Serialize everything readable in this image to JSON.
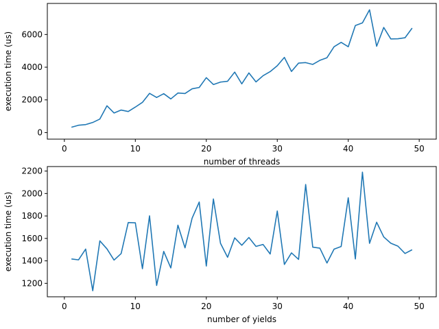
{
  "chart_data": [
    {
      "type": "line",
      "xlabel": "number of threads",
      "ylabel": "execution time (us)",
      "xlim": [
        -2.4,
        52.4
      ],
      "ylim": [
        -400,
        7900
      ],
      "xticks": [
        0,
        10,
        20,
        30,
        40,
        50
      ],
      "yticks": [
        0,
        2000,
        4000,
        6000
      ],
      "grid": false,
      "series": [
        {
          "color": "#1f77b4",
          "x": [
            1,
            2,
            3,
            4,
            5,
            6,
            7,
            8,
            9,
            10,
            11,
            12,
            13,
            14,
            15,
            16,
            17,
            18,
            19,
            20,
            21,
            22,
            23,
            24,
            25,
            26,
            27,
            28,
            29,
            30,
            31,
            32,
            33,
            34,
            35,
            36,
            37,
            38,
            39,
            40,
            41,
            42,
            43,
            44,
            45,
            46,
            47,
            48,
            49
          ],
          "y": [
            330,
            450,
            490,
            620,
            830,
            1640,
            1200,
            1380,
            1290,
            1560,
            1850,
            2400,
            2150,
            2380,
            2060,
            2420,
            2390,
            2680,
            2760,
            3360,
            2940,
            3090,
            3140,
            3700,
            2980,
            3650,
            3100,
            3480,
            3730,
            4090,
            4600,
            3740,
            4250,
            4280,
            4170,
            4420,
            4580,
            5250,
            5520,
            5250,
            6550,
            6710,
            7510,
            5280,
            6430,
            5730,
            5740,
            5800,
            6390
          ]
        }
      ]
    },
    {
      "type": "line",
      "xlabel": "number of yields",
      "ylabel": "execution time (us)",
      "xlim": [
        -2.4,
        52.4
      ],
      "ylim": [
        1080,
        2240
      ],
      "xticks": [
        0,
        10,
        20,
        30,
        40,
        50
      ],
      "yticks": [
        1200,
        1400,
        1600,
        1800,
        2000,
        2200
      ],
      "grid": false,
      "series": [
        {
          "color": "#1f77b4",
          "x": [
            1,
            2,
            3,
            4,
            5,
            6,
            7,
            8,
            9,
            10,
            11,
            12,
            13,
            14,
            15,
            16,
            17,
            18,
            19,
            20,
            21,
            22,
            23,
            24,
            25,
            26,
            27,
            28,
            29,
            30,
            31,
            32,
            33,
            34,
            35,
            36,
            37,
            38,
            39,
            40,
            41,
            42,
            43,
            44,
            45,
            46,
            47,
            48,
            49
          ],
          "y": [
            1417,
            1409,
            1505,
            1134,
            1578,
            1507,
            1407,
            1465,
            1741,
            1739,
            1330,
            1801,
            1181,
            1484,
            1337,
            1718,
            1516,
            1780,
            1924,
            1354,
            1951,
            1556,
            1432,
            1605,
            1539,
            1608,
            1529,
            1546,
            1461,
            1844,
            1368,
            1471,
            1413,
            2080,
            1522,
            1513,
            1381,
            1504,
            1528,
            1962,
            1417,
            2190,
            1556,
            1744,
            1613,
            1557,
            1531,
            1466,
            1499
          ]
        }
      ]
    }
  ]
}
